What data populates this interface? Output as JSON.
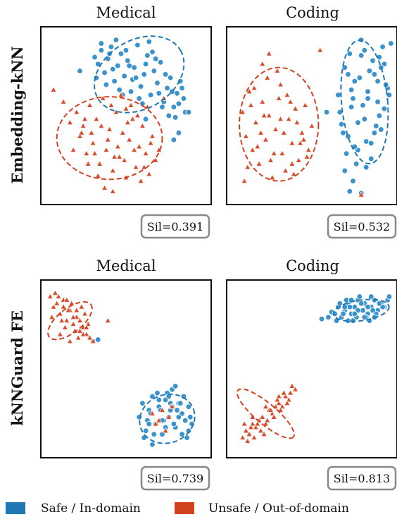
{
  "colors": {
    "safe": "#1f77b4",
    "unsafe": "#d2421f",
    "safe_fill": "#3a93cc",
    "unsafe_fill": "#d84e2c"
  },
  "chart_data": [
    {
      "type": "scatter",
      "row_label": "Embedding-kNN",
      "title": "Medical",
      "silhouette": "Sil=0.391",
      "grid": false,
      "series": [
        {
          "name": "Safe / In-domain",
          "marker": "circle",
          "x": [
            0.31,
            0.33,
            0.35,
            0.37,
            0.39,
            0.41,
            0.43,
            0.45,
            0.47,
            0.49,
            0.51,
            0.53,
            0.55,
            0.57,
            0.59,
            0.61,
            0.63,
            0.65,
            0.67,
            0.69,
            0.71,
            0.73,
            0.75,
            0.77,
            0.79,
            0.81,
            0.83,
            0.85,
            0.86,
            0.35,
            0.38,
            0.42,
            0.46,
            0.5,
            0.54,
            0.58,
            0.62,
            0.66,
            0.7,
            0.74,
            0.78,
            0.82,
            0.44,
            0.52,
            0.6,
            0.68,
            0.76,
            0.84,
            0.48,
            0.56,
            0.64,
            0.72,
            0.8,
            0.4,
            0.88,
            0.22,
            0.82,
            0.79,
            0.32,
            0.62
          ],
          "y": [
            0.84,
            0.8,
            0.88,
            0.75,
            0.83,
            0.9,
            0.7,
            0.79,
            0.86,
            0.73,
            0.82,
            0.64,
            0.78,
            0.91,
            0.67,
            0.74,
            0.85,
            0.62,
            0.76,
            0.69,
            0.81,
            0.58,
            0.66,
            0.72,
            0.55,
            0.63,
            0.7,
            0.6,
            0.52,
            0.92,
            0.68,
            0.77,
            0.65,
            0.88,
            0.71,
            0.6,
            0.8,
            0.87,
            0.63,
            0.74,
            0.64,
            0.57,
            0.94,
            0.79,
            0.57,
            0.83,
            0.5,
            0.66,
            0.62,
            0.72,
            0.93,
            0.55,
            0.49,
            0.86,
            0.52,
            0.76,
            0.4,
            0.36,
            0.72,
            0.48
          ]
        },
        {
          "name": "Unsafe / Out-of-domain",
          "marker": "triangle",
          "x": [
            0.06,
            0.12,
            0.16,
            0.2,
            0.22,
            0.24,
            0.26,
            0.28,
            0.3,
            0.32,
            0.34,
            0.36,
            0.38,
            0.4,
            0.42,
            0.44,
            0.46,
            0.48,
            0.5,
            0.52,
            0.54,
            0.56,
            0.58,
            0.6,
            0.62,
            0.64,
            0.66,
            0.68,
            0.7,
            0.18,
            0.25,
            0.33,
            0.41,
            0.49,
            0.57,
            0.65,
            0.29,
            0.37,
            0.45,
            0.53,
            0.61,
            0.35,
            0.43,
            0.51,
            0.59,
            0.39,
            0.47,
            0.55,
            0.27,
            0.23,
            0.31,
            0.73,
            0.63,
            0.42,
            0.5
          ],
          "y": [
            0.65,
            0.58,
            0.46,
            0.52,
            0.38,
            0.44,
            0.28,
            0.56,
            0.34,
            0.48,
            0.22,
            0.6,
            0.3,
            0.42,
            0.18,
            0.52,
            0.26,
            0.4,
            0.14,
            0.36,
            0.48,
            0.2,
            0.32,
            0.44,
            0.28,
            0.16,
            0.38,
            0.24,
            0.3,
            0.3,
            0.48,
            0.15,
            0.56,
            0.24,
            0.5,
            0.34,
            0.4,
            0.08,
            0.32,
            0.56,
            0.2,
            0.44,
            0.26,
            0.46,
            0.12,
            0.36,
            0.62,
            0.3,
            0.22,
            0.4,
            0.28,
            0.6,
            0.55,
            0.06,
            0.54
          ]
        }
      ],
      "ellipses": [
        {
          "series": "Safe / In-domain",
          "cx": 0.58,
          "cy": 0.74,
          "rx": 0.29,
          "ry": 0.2,
          "angle_deg": 30
        },
        {
          "series": "Unsafe / Out-of-domain",
          "cx": 0.4,
          "cy": 0.37,
          "rx": 0.32,
          "ry": 0.24,
          "angle_deg": 0
        }
      ]
    },
    {
      "type": "scatter",
      "row_label": "Embedding-kNN",
      "title": "Coding",
      "silhouette": "Sil=0.532",
      "grid": false,
      "series": [
        {
          "name": "Safe / In-domain",
          "marker": "circle",
          "x": [
            0.66,
            0.68,
            0.7,
            0.72,
            0.74,
            0.76,
            0.78,
            0.8,
            0.82,
            0.84,
            0.86,
            0.88,
            0.9,
            0.92,
            0.94,
            0.96,
            0.98,
            0.67,
            0.71,
            0.75,
            0.79,
            0.83,
            0.87,
            0.91,
            0.95,
            0.69,
            0.73,
            0.77,
            0.81,
            0.85,
            0.89,
            0.93,
            0.97,
            0.7,
            0.74,
            0.78,
            0.82,
            0.86,
            0.9,
            0.94,
            0.72,
            0.76,
            0.8,
            0.84,
            0.88,
            0.92,
            0.75,
            0.83,
            0.91,
            0.59,
            0.73,
            0.8
          ],
          "y": [
            0.62,
            0.45,
            0.78,
            0.38,
            0.55,
            0.7,
            0.3,
            0.85,
            0.48,
            0.64,
            0.25,
            0.74,
            0.58,
            0.42,
            0.8,
            0.66,
            0.92,
            0.52,
            0.28,
            0.6,
            0.72,
            0.35,
            0.82,
            0.5,
            0.68,
            0.4,
            0.86,
            0.22,
            0.56,
            0.76,
            0.44,
            0.9,
            0.62,
            0.18,
            0.65,
            0.46,
            0.88,
            0.34,
            0.7,
            0.54,
            0.74,
            0.32,
            0.94,
            0.6,
            0.4,
            0.78,
            0.12,
            0.2,
            0.84,
            0.52,
            0.06,
            0.05
          ]
        },
        {
          "name": "Unsafe / Out-of-domain",
          "marker": "triangle",
          "x": [
            0.08,
            0.1,
            0.12,
            0.14,
            0.16,
            0.18,
            0.2,
            0.22,
            0.24,
            0.26,
            0.28,
            0.3,
            0.32,
            0.34,
            0.36,
            0.38,
            0.4,
            0.42,
            0.44,
            0.46,
            0.48,
            0.5,
            0.11,
            0.15,
            0.19,
            0.23,
            0.27,
            0.31,
            0.35,
            0.39,
            0.43,
            0.47,
            0.13,
            0.17,
            0.21,
            0.25,
            0.29,
            0.33,
            0.37,
            0.41,
            0.45,
            0.09,
            0.24,
            0.31,
            0.55,
            0.8,
            0.38,
            0.2
          ],
          "y": [
            0.52,
            0.38,
            0.64,
            0.3,
            0.46,
            0.22,
            0.58,
            0.36,
            0.5,
            0.14,
            0.42,
            0.6,
            0.28,
            0.18,
            0.48,
            0.34,
            0.54,
            0.24,
            0.4,
            0.56,
            0.3,
            0.44,
            0.2,
            0.66,
            0.4,
            0.72,
            0.28,
            0.48,
            0.62,
            0.16,
            0.34,
            0.26,
            0.56,
            0.32,
            0.5,
            0.24,
            0.76,
            0.4,
            0.58,
            0.46,
            0.36,
            0.12,
            0.86,
            0.68,
            0.88,
            0.04,
            0.22,
            0.8
          ]
        }
      ],
      "ellipses": [
        {
          "series": "Safe / In-domain",
          "cx": 0.82,
          "cy": 0.58,
          "rx": 0.14,
          "ry": 0.36,
          "angle_deg": 5
        },
        {
          "series": "Unsafe / Out-of-domain",
          "cx": 0.3,
          "cy": 0.45,
          "rx": 0.24,
          "ry": 0.33,
          "angle_deg": 0
        }
      ]
    },
    {
      "type": "scatter",
      "row_label": "kNNGuard FE",
      "title": "Medical",
      "silhouette": "Sil=0.739",
      "grid": false,
      "series": [
        {
          "name": "Safe / In-domain",
          "marker": "circle",
          "x": [
            0.58,
            0.6,
            0.62,
            0.64,
            0.66,
            0.68,
            0.7,
            0.72,
            0.74,
            0.76,
            0.78,
            0.8,
            0.82,
            0.84,
            0.86,
            0.88,
            0.9,
            0.61,
            0.65,
            0.69,
            0.73,
            0.77,
            0.81,
            0.85,
            0.89,
            0.63,
            0.67,
            0.71,
            0.75,
            0.79,
            0.83,
            0.87,
            0.7,
            0.74,
            0.78,
            0.82,
            0.72,
            0.76,
            0.8,
            0.84,
            0.66,
            0.88,
            0.64,
            0.77,
            0.3,
            0.33
          ],
          "y": [
            0.22,
            0.3,
            0.14,
            0.26,
            0.34,
            0.18,
            0.28,
            0.12,
            0.32,
            0.22,
            0.38,
            0.16,
            0.3,
            0.24,
            0.2,
            0.14,
            0.18,
            0.1,
            0.24,
            0.36,
            0.2,
            0.3,
            0.26,
            0.34,
            0.22,
            0.2,
            0.12,
            0.26,
            0.36,
            0.18,
            0.3,
            0.1,
            0.32,
            0.16,
            0.28,
            0.22,
            0.2,
            0.34,
            0.4,
            0.12,
            0.06,
            0.28,
            0.18,
            0.26,
            0.66,
            0.67
          ]
        },
        {
          "name": "Unsafe / Out-of-domain",
          "marker": "triangle",
          "x": [
            0.04,
            0.06,
            0.08,
            0.1,
            0.12,
            0.14,
            0.16,
            0.18,
            0.2,
            0.22,
            0.24,
            0.26,
            0.28,
            0.3,
            0.05,
            0.09,
            0.13,
            0.17,
            0.21,
            0.25,
            0.07,
            0.11,
            0.15,
            0.19,
            0.23,
            0.27,
            0.1,
            0.14,
            0.18,
            0.22,
            0.26,
            0.12,
            0.16,
            0.2,
            0.24,
            0.39,
            0.66,
            0.7,
            0.74,
            0.78,
            0.68,
            0.76,
            0.72
          ],
          "y": [
            0.92,
            0.86,
            0.88,
            0.82,
            0.9,
            0.78,
            0.84,
            0.76,
            0.8,
            0.72,
            0.74,
            0.7,
            0.68,
            0.66,
            0.8,
            0.92,
            0.74,
            0.88,
            0.68,
            0.82,
            0.94,
            0.78,
            0.84,
            0.72,
            0.86,
            0.76,
            0.7,
            0.9,
            0.8,
            0.78,
            0.74,
            0.86,
            0.66,
            0.84,
            0.7,
            0.78,
            0.24,
            0.2,
            0.14,
            0.28,
            0.18,
            0.22,
            0.26
          ]
        }
      ],
      "ellipses": [
        {
          "series": "Unsafe / Out-of-domain",
          "cx": 0.16,
          "cy": 0.78,
          "rx": 0.16,
          "ry": 0.07,
          "angle_deg": 38
        },
        {
          "series": "Safe / In-domain",
          "cx": 0.75,
          "cy": 0.21,
          "rx": 0.17,
          "ry": 0.14,
          "angle_deg": 20
        }
      ]
    },
    {
      "type": "scatter",
      "row_label": "kNNGuard FE",
      "title": "Coding",
      "silhouette": "Sil=0.813",
      "grid": false,
      "series": [
        {
          "name": "Safe / In-domain",
          "marker": "circle",
          "x": [
            0.56,
            0.6,
            0.62,
            0.64,
            0.66,
            0.68,
            0.7,
            0.72,
            0.74,
            0.76,
            0.78,
            0.8,
            0.82,
            0.84,
            0.86,
            0.88,
            0.9,
            0.92,
            0.94,
            0.96,
            0.65,
            0.69,
            0.73,
            0.77,
            0.81,
            0.85,
            0.89,
            0.93,
            0.67,
            0.71,
            0.75,
            0.79,
            0.83,
            0.87,
            0.91,
            0.7,
            0.74,
            0.78,
            0.82,
            0.86,
            0.76,
            0.8,
            0.72,
            0.84,
            0.97,
            0.88
          ],
          "y": [
            0.79,
            0.8,
            0.83,
            0.82,
            0.86,
            0.8,
            0.84,
            0.88,
            0.82,
            0.86,
            0.9,
            0.84,
            0.88,
            0.82,
            0.86,
            0.9,
            0.84,
            0.88,
            0.86,
            0.9,
            0.78,
            0.82,
            0.86,
            0.8,
            0.84,
            0.78,
            0.82,
            0.86,
            0.88,
            0.9,
            0.78,
            0.92,
            0.8,
            0.84,
            0.88,
            0.86,
            0.9,
            0.84,
            0.8,
            0.92,
            0.82,
            0.88,
            0.78,
            0.86,
            0.92,
            0.8
          ]
        },
        {
          "name": "Unsafe / Out-of-domain",
          "marker": "triangle",
          "x": [
            0.08,
            0.1,
            0.12,
            0.14,
            0.16,
            0.18,
            0.2,
            0.22,
            0.24,
            0.26,
            0.28,
            0.3,
            0.32,
            0.34,
            0.36,
            0.11,
            0.15,
            0.19,
            0.23,
            0.27,
            0.31,
            0.35,
            0.13,
            0.17,
            0.21,
            0.25,
            0.29,
            0.33,
            0.37,
            0.09,
            0.14,
            0.22,
            0.3,
            0.38,
            0.4
          ],
          "y": [
            0.1,
            0.14,
            0.12,
            0.18,
            0.16,
            0.2,
            0.22,
            0.18,
            0.26,
            0.24,
            0.28,
            0.3,
            0.28,
            0.34,
            0.32,
            0.08,
            0.1,
            0.14,
            0.2,
            0.22,
            0.26,
            0.3,
            0.16,
            0.18,
            0.12,
            0.26,
            0.32,
            0.36,
            0.36,
            0.18,
            0.22,
            0.28,
            0.34,
            0.4,
            0.38
          ]
        }
      ],
      "ellipses": [
        {
          "series": "Safe / In-domain",
          "cx": 0.8,
          "cy": 0.84,
          "rx": 0.17,
          "ry": 0.06,
          "angle_deg": 8
        },
        {
          "series": "Unsafe / Out-of-domain",
          "cx": 0.22,
          "cy": 0.24,
          "rx": 0.22,
          "ry": 0.06,
          "angle_deg": -40
        }
      ]
    }
  ],
  "legend": {
    "placement": "bottom",
    "items": [
      {
        "label": "Safe / In-domain",
        "color": "#1f77b4"
      },
      {
        "label": "Unsafe / Out-of-domain",
        "color": "#d2421f"
      }
    ]
  }
}
